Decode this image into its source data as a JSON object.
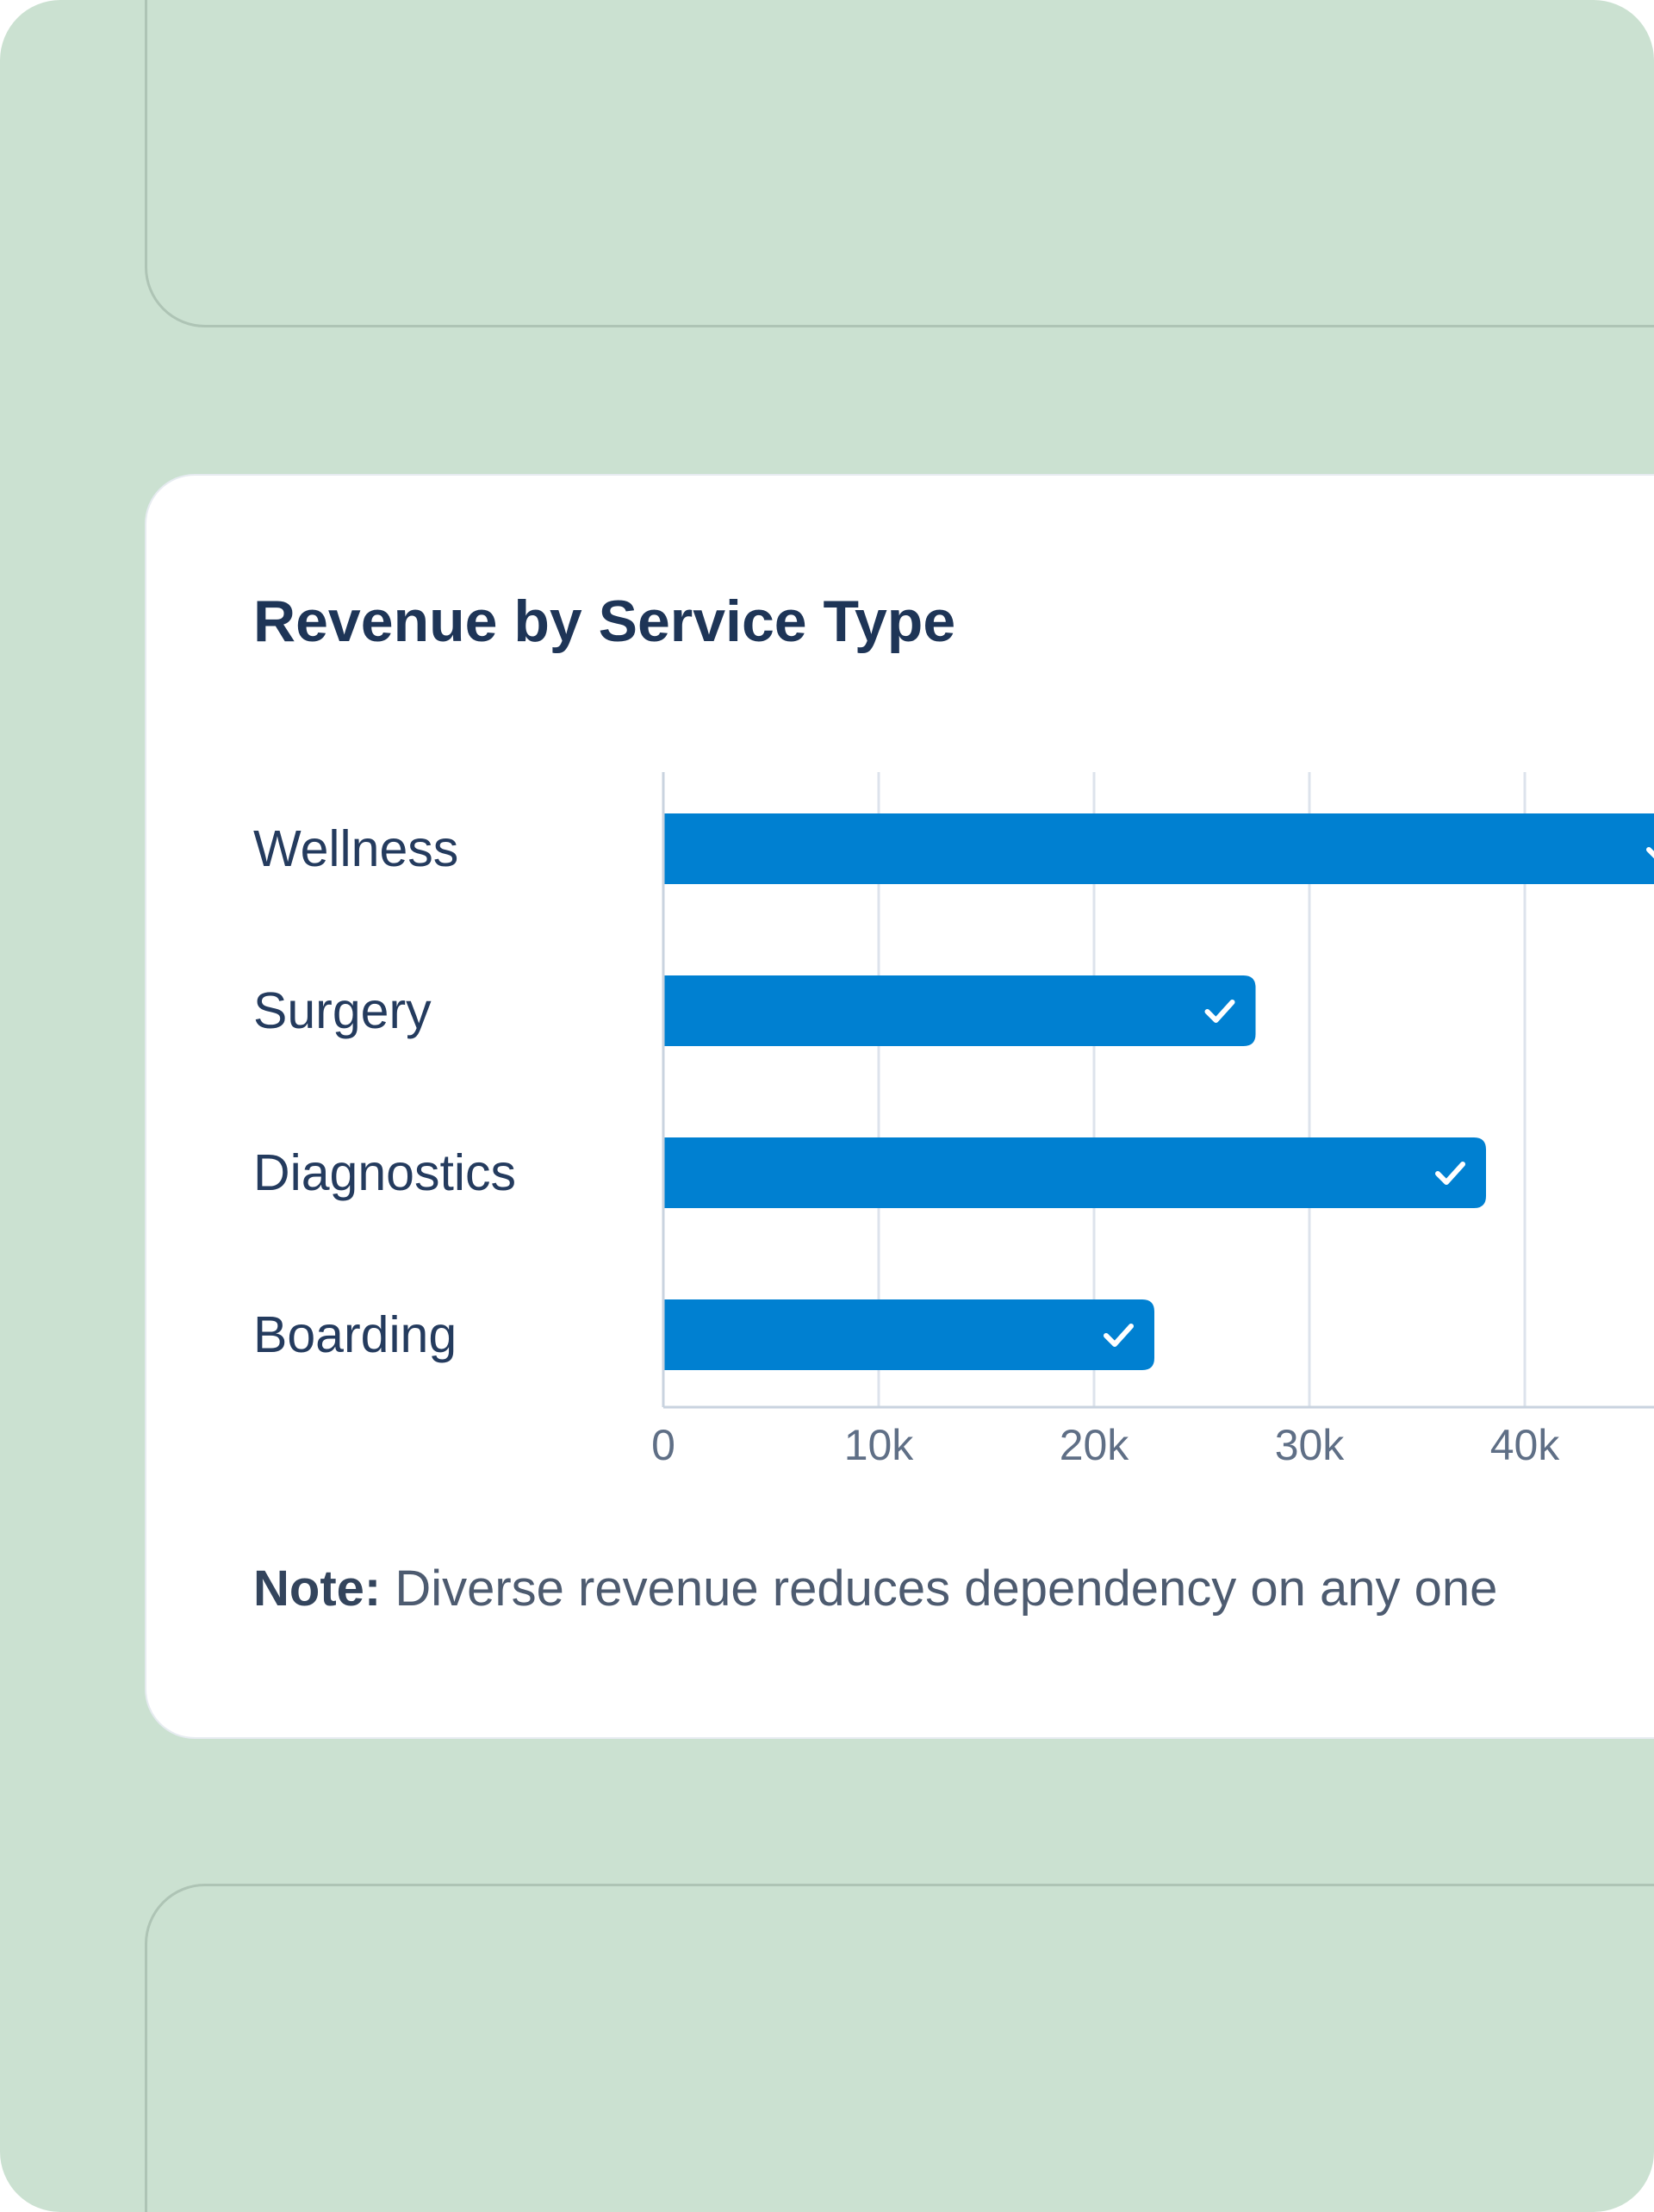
{
  "card": {
    "title": "Revenue by Service Type",
    "note_label": "Note:",
    "note_text": "Diverse revenue reduces dependency on any one"
  },
  "colors": {
    "bar": "#0080d1",
    "background": "#cbe1d1",
    "card": "#ffffff",
    "grid": "#dde3ec",
    "check": "#ffffff"
  },
  "chart_data": {
    "type": "bar",
    "orientation": "horizontal",
    "title": "Revenue by Service Type",
    "categories": [
      "Wellness",
      "Surgery",
      "Diagnostics",
      "Boarding"
    ],
    "values": [
      48000,
      27500,
      38200,
      22800
    ],
    "xlim": [
      0,
      50000
    ],
    "x_ticks": [
      0,
      10000,
      20000,
      30000,
      40000
    ],
    "x_tick_labels": [
      "0",
      "10k",
      "20k",
      "30k",
      "40k"
    ],
    "grid": "vertical",
    "bar_icon": "check-icon",
    "xlabel": "",
    "ylabel": ""
  }
}
